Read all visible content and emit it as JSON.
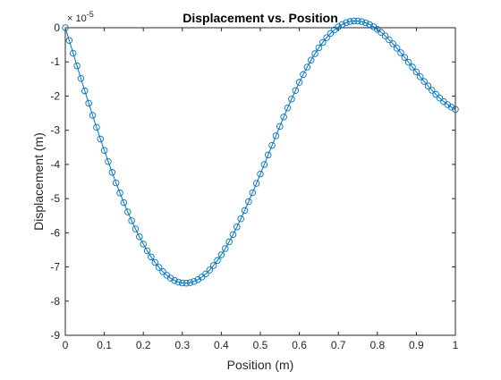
{
  "chart_data": {
    "type": "line",
    "title": "Displacement vs. Position",
    "xlabel": "Position (m)",
    "ylabel": "Displacement (m)",
    "y_exponent_base": "× 10",
    "y_exponent_power": "-5",
    "xlim": [
      0,
      1
    ],
    "ylim": [
      -9,
      0
    ],
    "x_ticks": [
      0,
      0.1,
      0.2,
      0.3,
      0.4,
      0.5,
      0.6,
      0.7,
      0.8,
      0.9,
      1
    ],
    "x_tick_labels": [
      "0",
      "0.1",
      "0.2",
      "0.3",
      "0.4",
      "0.5",
      "0.6",
      "0.7",
      "0.8",
      "0.9",
      "1"
    ],
    "y_ticks": [
      0,
      -1,
      -2,
      -3,
      -4,
      -5,
      -6,
      -7,
      -8,
      -9
    ],
    "y_tick_labels": [
      "0",
      "-1",
      "-2",
      "-3",
      "-4",
      "-5",
      "-6",
      "-7",
      "-8",
      "-9"
    ],
    "grid": false,
    "marker": "circle",
    "series": [
      {
        "color": "#0072bd",
        "x": [
          0,
          0.01,
          0.02,
          0.03,
          0.04,
          0.05,
          0.06,
          0.07,
          0.08,
          0.09,
          0.1,
          0.11,
          0.12,
          0.13,
          0.14,
          0.15,
          0.16,
          0.17,
          0.18,
          0.19,
          0.2,
          0.21,
          0.22,
          0.23,
          0.24,
          0.25,
          0.26,
          0.27,
          0.28,
          0.29,
          0.3,
          0.31,
          0.32,
          0.33,
          0.34,
          0.35,
          0.36,
          0.37,
          0.38,
          0.39,
          0.4,
          0.41,
          0.42,
          0.43,
          0.44,
          0.45,
          0.46,
          0.47,
          0.48,
          0.49,
          0.5,
          0.51,
          0.52,
          0.53,
          0.54,
          0.55,
          0.56,
          0.57,
          0.58,
          0.59,
          0.6,
          0.61,
          0.62,
          0.63,
          0.64,
          0.65,
          0.66,
          0.67,
          0.68,
          0.69,
          0.7,
          0.71,
          0.72,
          0.73,
          0.74,
          0.75,
          0.76,
          0.77,
          0.78,
          0.79,
          0.8,
          0.81,
          0.82,
          0.83,
          0.84,
          0.85,
          0.86,
          0.87,
          0.88,
          0.89,
          0.9,
          0.91,
          0.92,
          0.93,
          0.94,
          0.95,
          0.96,
          0.97,
          0.98,
          0.99,
          1
        ],
        "y": [
          0,
          -0.3733,
          -0.7457,
          -1.1163,
          -1.4844,
          -1.849,
          -2.2093,
          -2.5645,
          -2.9136,
          -3.2558,
          -3.5904,
          -3.9164,
          -4.233,
          -4.5394,
          -4.8348,
          -5.1183,
          -5.3891,
          -5.6465,
          -5.8897,
          -6.118,
          -6.3306,
          -6.527,
          -6.7064,
          -6.8683,
          -7.012,
          -7.1371,
          -7.2431,
          -7.3296,
          -7.3963,
          -7.4428,
          -7.4691,
          -7.4751,
          -7.4607,
          -7.4261,
          -7.3714,
          -7.297,
          -7.2031,
          -7.0903,
          -6.9591,
          -6.8101,
          -6.6442,
          -6.4621,
          -6.2649,
          -6.0535,
          -5.8291,
          -5.5929,
          -5.3462,
          -5.0903,
          -4.8266,
          -4.5566,
          -4.2816,
          -4.0032,
          -3.7229,
          -3.4423,
          -3.1629,
          -2.8863,
          -2.614,
          -2.3475,
          -2.0884,
          -1.8379,
          -1.5975,
          -1.3684,
          -1.1518,
          -0.9488,
          -0.7603,
          -0.5873,
          -0.4305,
          -0.2903,
          -0.1673,
          -0.0618,
          0.0261,
          0.096,
          0.1479,
          0.1818,
          0.1979,
          0.1966,
          0.1784,
          0.144,
          0.0941,
          0.0298,
          -0.0479,
          -0.1379,
          -0.2392,
          -0.3505,
          -0.4706,
          -0.598,
          -0.7315,
          -0.8693,
          -1.0102,
          -1.1525,
          -1.2946,
          -1.4351,
          -1.5723,
          -1.7049,
          -1.8313,
          -1.9502,
          -2.0603,
          -2.1603,
          -2.2491,
          -2.3256,
          -2.3889
        ]
      }
    ]
  }
}
